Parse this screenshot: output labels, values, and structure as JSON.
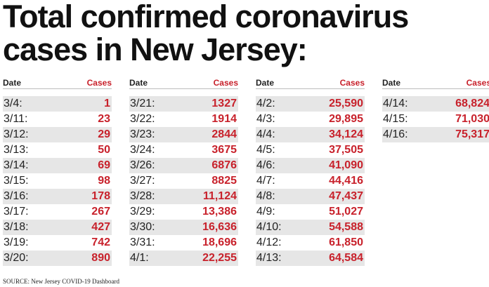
{
  "title_line1": "Total confirmed coronavirus",
  "title_line2": "cases in New Jersey:",
  "header_date": "Date",
  "header_cases": "Cases",
  "source": "SOURCE: New Jersey COVID-19 Dashboard",
  "colors": {
    "value_red": "#c8212b",
    "row_shade": "#e6e6e6"
  },
  "chart_data": {
    "type": "table",
    "columns": [
      "Date",
      "Cases"
    ],
    "rows": [
      [
        "3/4:",
        "1"
      ],
      [
        "3/11:",
        "23"
      ],
      [
        "3/12:",
        "29"
      ],
      [
        "3/13:",
        "50"
      ],
      [
        "3/14:",
        "69"
      ],
      [
        "3/15:",
        "98"
      ],
      [
        "3/16:",
        "178"
      ],
      [
        "3/17:",
        "267"
      ],
      [
        "3/18:",
        "427"
      ],
      [
        "3/19:",
        "742"
      ],
      [
        "3/20:",
        "890"
      ],
      [
        "3/21:",
        "1327"
      ],
      [
        "3/22:",
        "1914"
      ],
      [
        "3/23:",
        "2844"
      ],
      [
        "3/24:",
        "3675"
      ],
      [
        "3/26:",
        "6876"
      ],
      [
        "3/27:",
        "8825"
      ],
      [
        "3/28:",
        "11,124"
      ],
      [
        "3/29:",
        "13,386"
      ],
      [
        "3/30:",
        "16,636"
      ],
      [
        "3/31:",
        "18,696"
      ],
      [
        "4/1:",
        "22,255"
      ],
      [
        "4/2:",
        "25,590"
      ],
      [
        "4/3:",
        "29,895"
      ],
      [
        "4/4:",
        "34,124"
      ],
      [
        "4/5:",
        "37,505"
      ],
      [
        "4/6:",
        "41,090"
      ],
      [
        "4/7:",
        "44,416"
      ],
      [
        "4/8:",
        "47,437"
      ],
      [
        "4/9:",
        "51,027"
      ],
      [
        "4/10:",
        "54,588"
      ],
      [
        "4/12:",
        "61,850"
      ],
      [
        "4/13:",
        "64,584"
      ],
      [
        "4/14:",
        "68,824"
      ],
      [
        "4/15:",
        "71,030"
      ],
      [
        "4/16:",
        "75,317"
      ]
    ]
  }
}
